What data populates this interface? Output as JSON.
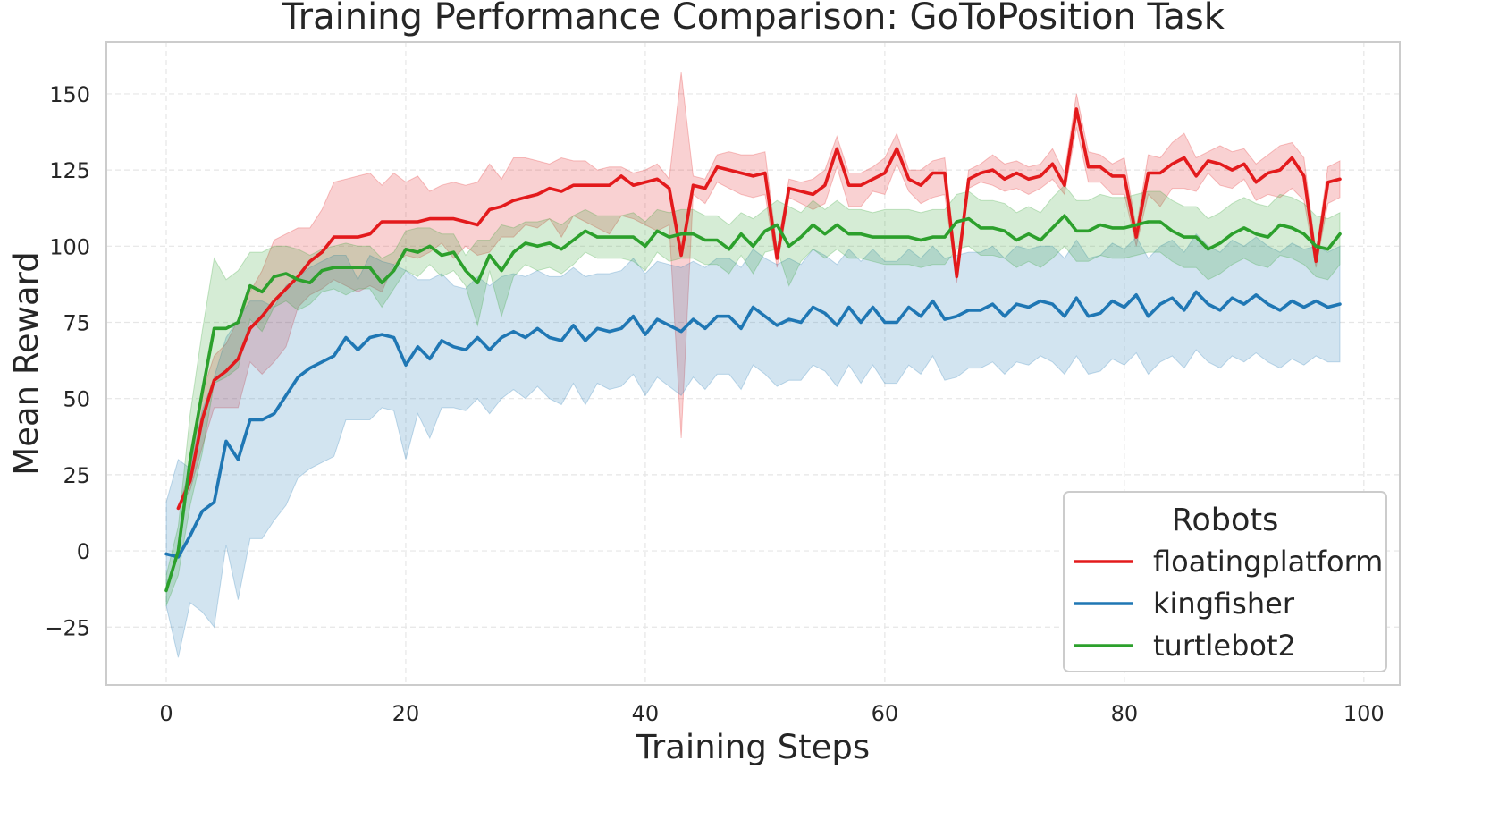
{
  "chart_data": {
    "type": "line",
    "title": "Training Performance Comparison: GoToPosition Task",
    "xlabel": "Training Steps",
    "ylabel": "Mean Reward",
    "xlim": [
      -5,
      103
    ],
    "ylim": [
      -44,
      167
    ],
    "xticks": [
      0,
      20,
      40,
      60,
      80,
      100
    ],
    "yticks": [
      -25,
      0,
      25,
      50,
      75,
      100,
      125,
      150
    ],
    "ytick_labels": [
      "−25",
      "0",
      "25",
      "50",
      "75",
      "100",
      "125",
      "150"
    ],
    "grid": true,
    "legend": {
      "title": "Robots",
      "position": "lower-right"
    },
    "series": [
      {
        "name": "floatingplatform",
        "color": "#e31a1c",
        "x": [
          1,
          2,
          3,
          4,
          5,
          6,
          7,
          8,
          9,
          10,
          11,
          12,
          13,
          14,
          15,
          16,
          17,
          18,
          19,
          20,
          21,
          22,
          23,
          24,
          25,
          26,
          27,
          28,
          29,
          30,
          31,
          32,
          33,
          34,
          35,
          36,
          37,
          38,
          39,
          40,
          41,
          42,
          43,
          44,
          45,
          46,
          47,
          48,
          49,
          50,
          51,
          52,
          53,
          54,
          55,
          56,
          57,
          58,
          59,
          60,
          61,
          62,
          63,
          64,
          65,
          66,
          67,
          68,
          69,
          70,
          71,
          72,
          73,
          74,
          75,
          76,
          77,
          78,
          79,
          80,
          81,
          82,
          83,
          84,
          85,
          86,
          87,
          88,
          89,
          90,
          91,
          92,
          93,
          94,
          95,
          96,
          97,
          98
        ],
        "values": [
          14,
          23,
          43,
          56,
          59,
          63,
          73,
          77,
          82,
          86,
          90,
          95,
          98,
          103,
          103,
          103,
          104,
          108,
          108,
          108,
          108,
          109,
          109,
          109,
          108,
          107,
          112,
          113,
          115,
          116,
          117,
          119,
          118,
          120,
          120,
          120,
          120,
          123,
          120,
          121,
          122,
          119,
          97,
          120,
          119,
          126,
          125,
          124,
          123,
          124,
          96,
          119,
          118,
          117,
          120,
          132,
          120,
          120,
          122,
          124,
          132,
          122,
          120,
          124,
          124,
          90,
          122,
          124,
          125,
          122,
          124,
          122,
          123,
          127,
          120,
          145,
          126,
          126,
          123,
          123,
          103,
          124,
          124,
          127,
          129,
          123,
          128,
          127,
          125,
          127,
          121,
          124,
          125,
          129,
          123,
          95,
          121,
          122
        ],
        "lower": [
          14,
          20,
          34,
          47,
          47,
          47,
          62,
          58,
          62,
          67,
          80,
          84,
          86,
          89,
          87,
          85,
          87,
          85,
          94,
          97,
          96,
          98,
          101,
          96,
          100,
          97,
          98,
          103,
          103,
          107,
          106,
          109,
          103,
          110,
          108,
          106,
          104,
          110,
          109,
          107,
          105,
          107,
          37,
          117,
          114,
          121,
          119,
          117,
          116,
          117,
          93,
          116,
          114,
          112,
          114,
          126,
          113,
          113,
          118,
          117,
          127,
          118,
          114,
          116,
          117,
          88,
          119,
          121,
          120,
          118,
          119,
          117,
          119,
          122,
          117,
          139,
          121,
          121,
          117,
          117,
          100,
          117,
          113,
          119,
          119,
          118,
          124,
          120,
          119,
          122,
          115,
          117,
          116,
          119,
          115,
          93,
          114,
          116
        ],
        "upper": [
          14,
          27,
          52,
          64,
          68,
          76,
          85,
          92,
          102,
          104,
          106,
          106,
          112,
          121,
          122,
          123,
          124,
          120,
          124,
          121,
          123,
          118,
          120,
          121,
          120,
          121,
          127,
          122,
          129,
          129,
          128,
          127,
          129,
          128,
          128,
          125,
          126,
          126,
          124,
          125,
          127,
          122,
          157,
          123,
          122,
          130,
          131,
          130,
          130,
          131,
          99,
          122,
          121,
          122,
          125,
          136,
          124,
          124,
          126,
          129,
          137,
          125,
          125,
          128,
          129,
          93,
          125,
          127,
          130,
          127,
          128,
          126,
          127,
          132,
          124,
          150,
          131,
          130,
          127,
          129,
          106,
          130,
          129,
          134,
          137,
          129,
          131,
          133,
          131,
          132,
          127,
          130,
          133,
          134,
          129,
          98,
          126,
          128
        ]
      },
      {
        "name": "kingfisher",
        "color": "#1f77b4",
        "x": [
          0,
          1,
          2,
          3,
          4,
          5,
          6,
          7,
          8,
          9,
          10,
          11,
          12,
          13,
          14,
          15,
          16,
          17,
          18,
          19,
          20,
          21,
          22,
          23,
          24,
          25,
          26,
          27,
          28,
          29,
          30,
          31,
          32,
          33,
          34,
          35,
          36,
          37,
          38,
          39,
          40,
          41,
          42,
          43,
          44,
          45,
          46,
          47,
          48,
          49,
          50,
          51,
          52,
          53,
          54,
          55,
          56,
          57,
          58,
          59,
          60,
          61,
          62,
          63,
          64,
          65,
          66,
          67,
          68,
          69,
          70,
          71,
          72,
          73,
          74,
          75,
          76,
          77,
          78,
          79,
          80,
          81,
          82,
          83,
          84,
          85,
          86,
          87,
          88,
          89,
          90,
          91,
          92,
          93,
          94,
          95,
          96,
          97,
          98
        ],
        "values": [
          -1,
          -2,
          5,
          13,
          16,
          36,
          30,
          43,
          43,
          45,
          51,
          57,
          60,
          62,
          64,
          70,
          66,
          70,
          71,
          70,
          61,
          67,
          63,
          69,
          67,
          66,
          70,
          66,
          70,
          72,
          70,
          73,
          70,
          69,
          74,
          69,
          73,
          72,
          73,
          77,
          71,
          76,
          74,
          72,
          76,
          73,
          77,
          77,
          73,
          80,
          77,
          74,
          76,
          75,
          80,
          78,
          74,
          80,
          75,
          80,
          75,
          75,
          80,
          77,
          82,
          76,
          77,
          79,
          79,
          81,
          77,
          81,
          80,
          82,
          81,
          77,
          83,
          77,
          78,
          82,
          80,
          84,
          77,
          81,
          83,
          79,
          85,
          81,
          79,
          83,
          81,
          84,
          81,
          79,
          82,
          80,
          82,
          80,
          81
        ],
        "lower": [
          -18,
          -35,
          -17,
          -20,
          -25,
          2,
          -16,
          4,
          4,
          10,
          15,
          24,
          27,
          29,
          31,
          43,
          43,
          43,
          47,
          46,
          30,
          45,
          37,
          47,
          47,
          46,
          50,
          45,
          50,
          53,
          50,
          54,
          50,
          48,
          55,
          48,
          55,
          53,
          54,
          58,
          51,
          57,
          54,
          51,
          57,
          53,
          58,
          58,
          53,
          61,
          58,
          54,
          56,
          56,
          61,
          59,
          54,
          61,
          55,
          61,
          55,
          55,
          61,
          58,
          64,
          56,
          57,
          60,
          60,
          62,
          58,
          62,
          61,
          64,
          62,
          58,
          64,
          58,
          59,
          63,
          61,
          65,
          58,
          62,
          64,
          60,
          66,
          62,
          60,
          64,
          62,
          65,
          62,
          60,
          63,
          61,
          64,
          62,
          62
        ],
        "upper": [
          16,
          30,
          27,
          46,
          57,
          70,
          76,
          82,
          82,
          80,
          87,
          90,
          93,
          95,
          97,
          97,
          89,
          97,
          95,
          94,
          92,
          89,
          89,
          91,
          87,
          86,
          90,
          87,
          90,
          91,
          90,
          92,
          90,
          90,
          93,
          90,
          91,
          91,
          92,
          96,
          91,
          95,
          94,
          93,
          95,
          93,
          96,
          96,
          93,
          99,
          96,
          94,
          96,
          94,
          99,
          97,
          94,
          99,
          95,
          99,
          95,
          95,
          99,
          96,
          100,
          96,
          97,
          98,
          98,
          100,
          96,
          100,
          99,
          100,
          100,
          96,
          102,
          96,
          97,
          101,
          99,
          103,
          96,
          100,
          102,
          98,
          104,
          100,
          98,
          102,
          100,
          103,
          100,
          98,
          101,
          99,
          100,
          98,
          100
        ]
      },
      {
        "name": "turtlebot2",
        "color": "#2ca02c",
        "x": [
          0,
          1,
          2,
          3,
          4,
          5,
          6,
          7,
          8,
          9,
          10,
          11,
          12,
          13,
          14,
          15,
          16,
          17,
          18,
          19,
          20,
          21,
          22,
          23,
          24,
          25,
          26,
          27,
          28,
          29,
          30,
          31,
          32,
          33,
          34,
          35,
          36,
          37,
          38,
          39,
          40,
          41,
          42,
          43,
          44,
          45,
          46,
          47,
          48,
          49,
          50,
          51,
          52,
          53,
          54,
          55,
          56,
          57,
          58,
          59,
          60,
          61,
          62,
          63,
          64,
          65,
          66,
          67,
          68,
          69,
          70,
          71,
          72,
          73,
          74,
          75,
          76,
          77,
          78,
          79,
          80,
          81,
          82,
          83,
          84,
          85,
          86,
          87,
          88,
          89,
          90,
          91,
          92,
          93,
          94,
          95,
          96,
          97,
          98
        ],
        "values": [
          -13,
          0,
          30,
          52,
          73,
          73,
          75,
          87,
          85,
          90,
          91,
          89,
          88,
          92,
          93,
          93,
          93,
          93,
          88,
          92,
          99,
          98,
          100,
          97,
          98,
          92,
          88,
          97,
          92,
          98,
          101,
          100,
          101,
          99,
          102,
          105,
          103,
          103,
          103,
          103,
          100,
          105,
          103,
          104,
          104,
          102,
          102,
          99,
          104,
          100,
          105,
          107,
          100,
          103,
          107,
          104,
          107,
          104,
          104,
          103,
          103,
          103,
          103,
          102,
          103,
          103,
          108,
          109,
          106,
          106,
          105,
          102,
          104,
          102,
          106,
          110,
          105,
          105,
          107,
          106,
          106,
          107,
          108,
          108,
          105,
          103,
          103,
          99,
          101,
          104,
          106,
          104,
          103,
          107,
          106,
          104,
          100,
          99,
          104
        ],
        "lower": [
          -18,
          -8,
          15,
          32,
          55,
          57,
          60,
          76,
          72,
          80,
          82,
          79,
          81,
          85,
          86,
          84,
          86,
          86,
          80,
          86,
          92,
          90,
          94,
          90,
          92,
          87,
          74,
          92,
          77,
          90,
          94,
          92,
          93,
          91,
          94,
          98,
          96,
          96,
          96,
          95,
          92,
          98,
          95,
          96,
          96,
          94,
          94,
          91,
          97,
          91,
          98,
          99,
          87,
          95,
          99,
          96,
          99,
          96,
          96,
          95,
          94,
          94,
          94,
          93,
          94,
          94,
          99,
          100,
          97,
          97,
          96,
          93,
          95,
          93,
          96,
          100,
          95,
          95,
          97,
          96,
          96,
          97,
          98,
          98,
          95,
          93,
          93,
          89,
          91,
          94,
          96,
          94,
          93,
          97,
          96,
          94,
          90,
          89,
          94
        ],
        "upper": [
          -8,
          8,
          45,
          72,
          96,
          89,
          92,
          98,
          98,
          100,
          100,
          99,
          97,
          99,
          100,
          101,
          100,
          100,
          96,
          98,
          105,
          106,
          106,
          104,
          104,
          97,
          102,
          102,
          107,
          106,
          108,
          108,
          109,
          107,
          110,
          112,
          110,
          110,
          110,
          111,
          108,
          112,
          111,
          112,
          112,
          110,
          110,
          107,
          111,
          109,
          112,
          115,
          113,
          111,
          115,
          112,
          115,
          112,
          112,
          111,
          112,
          112,
          112,
          111,
          112,
          112,
          117,
          118,
          115,
          115,
          114,
          111,
          113,
          111,
          116,
          120,
          115,
          115,
          117,
          116,
          116,
          117,
          118,
          118,
          115,
          113,
          113,
          109,
          111,
          114,
          116,
          114,
          113,
          117,
          116,
          114,
          110,
          109,
          111
        ]
      }
    ]
  }
}
